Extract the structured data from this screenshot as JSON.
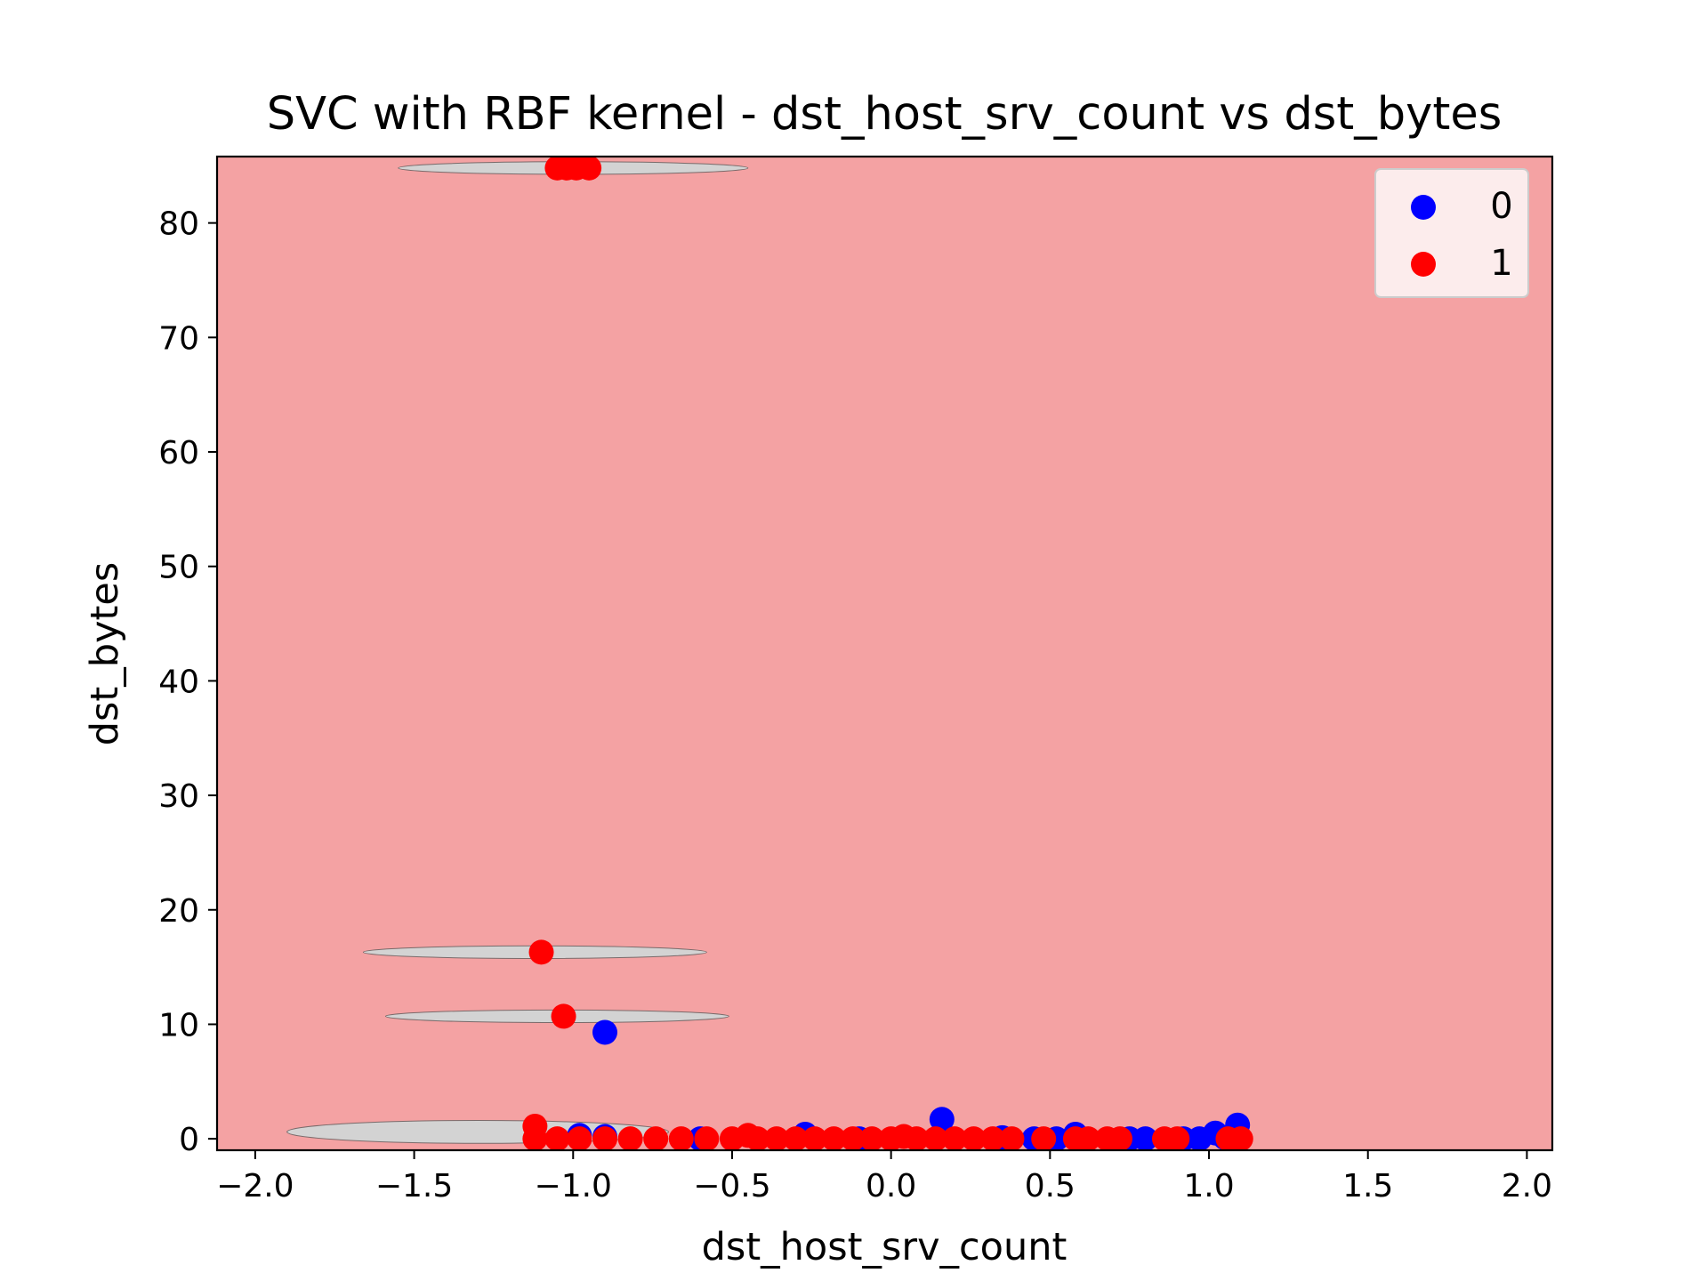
{
  "chart_data": {
    "type": "scatter",
    "title": "SVC with RBF kernel - dst_host_srv_count vs dst_bytes",
    "xlabel": "dst_host_srv_count",
    "ylabel": "dst_bytes",
    "xlim": [
      -2.12,
      2.08
    ],
    "ylim": [
      -1,
      85.8
    ],
    "x_ticks": [
      -2.0,
      -1.5,
      -1.0,
      -0.5,
      0.0,
      0.5,
      1.0,
      1.5,
      2.0
    ],
    "x_tick_labels": [
      "−2.0",
      "−1.5",
      "−1.0",
      "−0.5",
      "0.0",
      "0.5",
      "1.0",
      "1.5",
      "2.0"
    ],
    "y_ticks": [
      0,
      10,
      20,
      30,
      40,
      50,
      60,
      70,
      80
    ],
    "y_tick_labels": [
      "0",
      "10",
      "20",
      "30",
      "40",
      "50",
      "60",
      "70",
      "80"
    ],
    "grid": false,
    "legend": {
      "placement": "top-right"
    },
    "background_region": {
      "label": "1",
      "color": "#f4a2a3"
    },
    "decision_regions": [
      {
        "label": "0",
        "color": "#d3d3d3",
        "cx": -1.0,
        "cy": 84.8,
        "rx": 0.55,
        "ry": 0.55
      },
      {
        "label": "0",
        "color": "#d3d3d3",
        "cx": -1.12,
        "cy": 16.3,
        "rx": 0.54,
        "ry": 0.55
      },
      {
        "label": "0",
        "color": "#d3d3d3",
        "cx": -1.05,
        "cy": 10.7,
        "rx": 0.54,
        "ry": 0.55
      },
      {
        "label": "0",
        "color": "#d3d3d3",
        "cx": -1.3,
        "cy": 0.6,
        "rx": 0.6,
        "ry": 1.0
      }
    ],
    "series": [
      {
        "name": "0",
        "color": "#0000ff",
        "points": [
          [
            -0.9,
            9.3
          ],
          [
            0.16,
            1.7
          ],
          [
            1.09,
            1.2
          ],
          [
            1.02,
            0.5
          ],
          [
            0.58,
            0.4
          ],
          [
            -0.98,
            0.3
          ],
          [
            -0.9,
            0.2
          ],
          [
            -0.27,
            0.4
          ],
          [
            0.35,
            0.1
          ],
          [
            0.45,
            0.0
          ],
          [
            0.52,
            0.0
          ],
          [
            0.75,
            0.0
          ],
          [
            0.8,
            0.0
          ],
          [
            0.92,
            0.0
          ],
          [
            0.97,
            0.0
          ],
          [
            1.05,
            0.1
          ],
          [
            -0.6,
            0.0
          ],
          [
            -0.1,
            0.0
          ]
        ]
      },
      {
        "name": "1",
        "color": "#ff0000",
        "points": [
          [
            -1.05,
            84.8
          ],
          [
            -1.02,
            84.8
          ],
          [
            -0.99,
            84.8
          ],
          [
            -0.95,
            84.8
          ],
          [
            -1.1,
            16.3
          ],
          [
            -1.03,
            10.7
          ],
          [
            -1.12,
            1.1
          ],
          [
            -1.12,
            0.0
          ],
          [
            -1.05,
            0.0
          ],
          [
            -0.98,
            0.0
          ],
          [
            -0.9,
            0.0
          ],
          [
            -0.82,
            0.0
          ],
          [
            -0.74,
            0.0
          ],
          [
            -0.66,
            0.0
          ],
          [
            -0.58,
            0.0
          ],
          [
            -0.5,
            0.0
          ],
          [
            -0.45,
            0.3
          ],
          [
            -0.42,
            0.0
          ],
          [
            -0.36,
            0.0
          ],
          [
            -0.3,
            0.0
          ],
          [
            -0.24,
            0.0
          ],
          [
            -0.18,
            0.0
          ],
          [
            -0.12,
            0.0
          ],
          [
            -0.06,
            0.0
          ],
          [
            0.0,
            0.0
          ],
          [
            0.04,
            0.2
          ],
          [
            0.08,
            0.0
          ],
          [
            0.14,
            0.0
          ],
          [
            0.2,
            0.0
          ],
          [
            0.26,
            0.0
          ],
          [
            0.32,
            0.0
          ],
          [
            0.38,
            0.0
          ],
          [
            0.48,
            0.0
          ],
          [
            0.58,
            0.0
          ],
          [
            0.62,
            0.0
          ],
          [
            0.68,
            0.0
          ],
          [
            0.72,
            0.0
          ],
          [
            0.86,
            0.0
          ],
          [
            0.9,
            0.0
          ],
          [
            1.06,
            0.0
          ],
          [
            1.1,
            0.0
          ]
        ]
      }
    ]
  }
}
